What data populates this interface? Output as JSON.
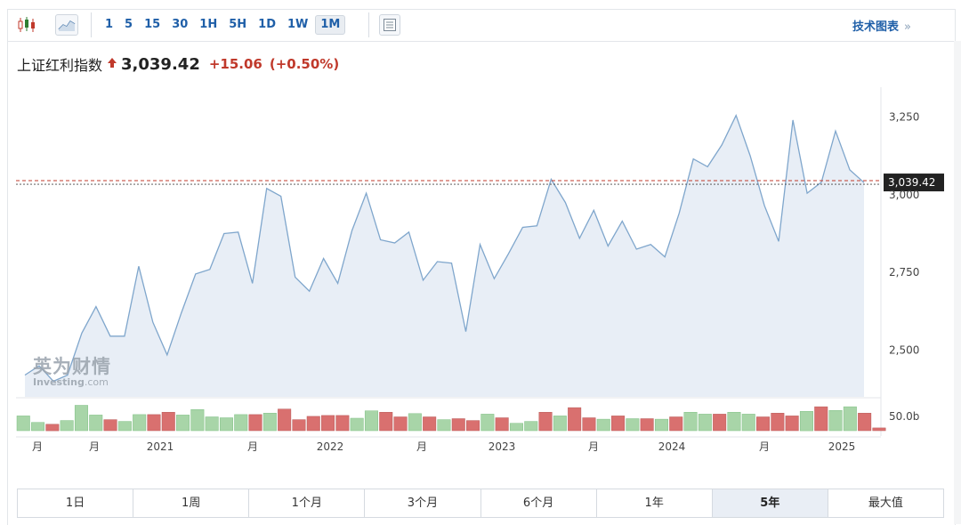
{
  "toolbar": {
    "intervals": [
      "1",
      "5",
      "15",
      "30",
      "1H",
      "5H",
      "1D",
      "1W",
      "1M"
    ],
    "active_interval": "1M",
    "tech_link_label": "技术图表",
    "tech_link_arrow": "»",
    "icons": [
      "candlestick-icon",
      "line-chart-icon",
      "settings-panel-icon"
    ]
  },
  "quote": {
    "name": "上证红利指数",
    "direction_icon": "up-arrow-icon",
    "price": "3,039.42",
    "change": "+15.06",
    "change_pct": "(+0.50%)"
  },
  "watermark": {
    "cn": "英为财情",
    "en": "Investing",
    "en_suffix": ".com"
  },
  "ranges": [
    "1日",
    "1周",
    "1个月",
    "3个月",
    "6个月",
    "1年",
    "5年",
    "最大值"
  ],
  "active_range": "5年",
  "colors": {
    "line": "#7fa6cc",
    "area": "#e8eef6",
    "price_line": "#c0392b",
    "price_tag": "#222222",
    "volume_up": "#a8d5a8",
    "volume_down": "#d9706f",
    "up_text": "#c0392b"
  },
  "chart_data": {
    "type": "area",
    "ylim": [
      2350,
      3340
    ],
    "y_ticks": [
      {
        "value": 3250,
        "label": "3,250"
      },
      {
        "value": 3000,
        "label": "3,000"
      },
      {
        "value": 2750,
        "label": "2,750"
      },
      {
        "value": 2500,
        "label": "2,500"
      }
    ],
    "last_price": 3039.42,
    "last_price_label": "3,039.42",
    "x_labels": [
      {
        "index": 1,
        "label": "月"
      },
      {
        "index": 5,
        "label": "月"
      },
      {
        "index": 9,
        "label": "2021"
      },
      {
        "index": 16,
        "label": "月"
      },
      {
        "index": 21,
        "label": "2022"
      },
      {
        "index": 28,
        "label": "月"
      },
      {
        "index": 33,
        "label": "2023"
      },
      {
        "index": 40,
        "label": "月"
      },
      {
        "index": 45,
        "label": "2024"
      },
      {
        "index": 52,
        "label": "月"
      },
      {
        "index": 57,
        "label": "2025"
      }
    ],
    "values": [
      2420,
      2450,
      2400,
      2420,
      2555,
      2640,
      2545,
      2545,
      2770,
      2590,
      2485,
      2620,
      2745,
      2760,
      2875,
      2880,
      2715,
      3020,
      2995,
      2735,
      2690,
      2795,
      2715,
      2885,
      3005,
      2855,
      2845,
      2880,
      2725,
      2785,
      2780,
      2560,
      2840,
      2730,
      2810,
      2895,
      2900,
      3050,
      2975,
      2860,
      2950,
      2835,
      2915,
      2825,
      2840,
      2800,
      2940,
      3115,
      3090,
      3160,
      3255,
      3125,
      2965,
      2850,
      3240,
      3005,
      3040,
      3205,
      3080,
      3039
    ],
    "volume_label": "50.0b",
    "volume_ref": 50,
    "volume": [
      {
        "v": 32,
        "up": true
      },
      {
        "v": 18,
        "up": true
      },
      {
        "v": 14,
        "up": false
      },
      {
        "v": 22,
        "up": true
      },
      {
        "v": 55,
        "up": true
      },
      {
        "v": 34,
        "up": true
      },
      {
        "v": 24,
        "up": false
      },
      {
        "v": 20,
        "up": true
      },
      {
        "v": 35,
        "up": true
      },
      {
        "v": 35,
        "up": false
      },
      {
        "v": 40,
        "up": false
      },
      {
        "v": 34,
        "up": true
      },
      {
        "v": 46,
        "up": true
      },
      {
        "v": 30,
        "up": true
      },
      {
        "v": 28,
        "up": true
      },
      {
        "v": 35,
        "up": true
      },
      {
        "v": 35,
        "up": false
      },
      {
        "v": 38,
        "up": true
      },
      {
        "v": 47,
        "up": false
      },
      {
        "v": 24,
        "up": false
      },
      {
        "v": 31,
        "up": false
      },
      {
        "v": 33,
        "up": false
      },
      {
        "v": 33,
        "up": false
      },
      {
        "v": 27,
        "up": true
      },
      {
        "v": 43,
        "up": true
      },
      {
        "v": 40,
        "up": false
      },
      {
        "v": 30,
        "up": false
      },
      {
        "v": 37,
        "up": true
      },
      {
        "v": 30,
        "up": false
      },
      {
        "v": 24,
        "up": true
      },
      {
        "v": 26,
        "up": false
      },
      {
        "v": 22,
        "up": false
      },
      {
        "v": 36,
        "up": true
      },
      {
        "v": 28,
        "up": false
      },
      {
        "v": 16,
        "up": true
      },
      {
        "v": 20,
        "up": true
      },
      {
        "v": 40,
        "up": false
      },
      {
        "v": 32,
        "up": true
      },
      {
        "v": 50,
        "up": false
      },
      {
        "v": 28,
        "up": false
      },
      {
        "v": 25,
        "up": true
      },
      {
        "v": 32,
        "up": false
      },
      {
        "v": 26,
        "up": true
      },
      {
        "v": 26,
        "up": false
      },
      {
        "v": 25,
        "up": true
      },
      {
        "v": 30,
        "up": false
      },
      {
        "v": 40,
        "up": true
      },
      {
        "v": 36,
        "up": true
      },
      {
        "v": 36,
        "up": false
      },
      {
        "v": 40,
        "up": true
      },
      {
        "v": 36,
        "up": true
      },
      {
        "v": 30,
        "up": false
      },
      {
        "v": 38,
        "up": false
      },
      {
        "v": 32,
        "up": false
      },
      {
        "v": 42,
        "up": true
      },
      {
        "v": 52,
        "up": false
      },
      {
        "v": 44,
        "up": true
      },
      {
        "v": 52,
        "up": true
      },
      {
        "v": 38,
        "up": false
      },
      {
        "v": 6,
        "up": false
      }
    ]
  }
}
